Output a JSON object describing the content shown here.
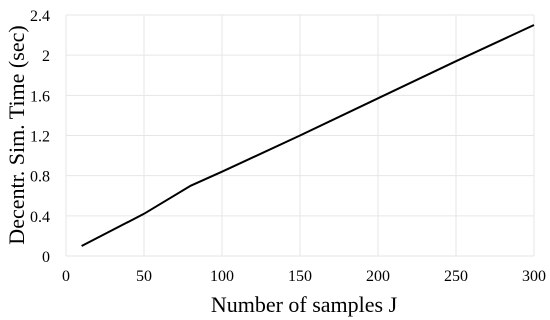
{
  "chart_data": {
    "type": "line",
    "xlabel": "Number of samples J",
    "ylabel": "Decentr. Sim. Time (sec)",
    "xlim": [
      0,
      300
    ],
    "ylim": [
      0,
      2.4
    ],
    "xticks": [
      0,
      50,
      100,
      150,
      200,
      250,
      300
    ],
    "yticks": [
      0,
      0.4,
      0.8,
      1.2,
      1.6,
      2,
      2.4
    ],
    "grid": true,
    "series": [
      {
        "color": "#000000",
        "x": [
          10,
          50,
          80,
          100,
          150,
          200,
          250,
          300
        ],
        "y": [
          0.1,
          0.42,
          0.7,
          0.84,
          1.2,
          1.57,
          1.94,
          2.3
        ]
      }
    ]
  }
}
